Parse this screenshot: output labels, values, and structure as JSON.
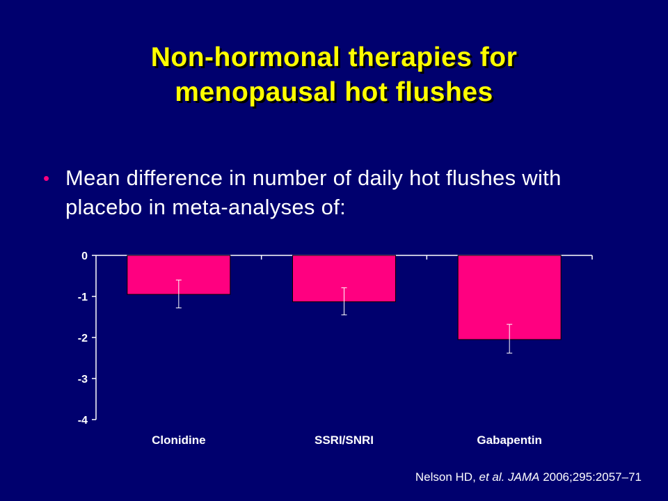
{
  "title_line1": "Non-hormonal therapies for",
  "title_line2": "menopausal hot flushes",
  "bullet": "Mean difference in number of daily hot flushes with placebo in meta-analyses of:",
  "citation": {
    "authors": "Nelson HD, ",
    "etal": "et al.",
    "journal": "JAMA",
    "details": "2006;295:2057–71"
  },
  "colors": {
    "background": "#00006e",
    "title": "#ffff00",
    "bar": "#ff0080",
    "bullet_dot": "#ff0080",
    "text": "#ffffff"
  },
  "chart_data": {
    "type": "bar",
    "categories": [
      "Clonidine",
      "SSRI/SNRI",
      "Gabapentin"
    ],
    "values": [
      -0.95,
      -1.13,
      -2.05
    ],
    "error_low": [
      -1.28,
      -1.45,
      -2.38
    ],
    "error_high": [
      -0.6,
      -0.79,
      -1.68
    ],
    "ylim": [
      -4,
      0
    ],
    "yticks": [
      0,
      -1,
      -2,
      -3,
      -4
    ],
    "xlabel": "",
    "ylabel": "",
    "grid": false
  }
}
